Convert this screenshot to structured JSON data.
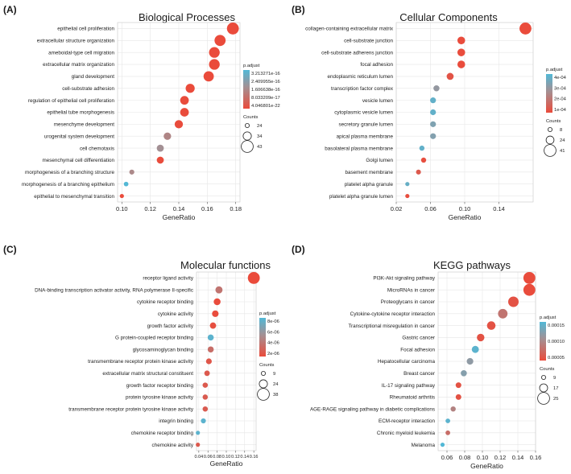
{
  "chart_data": [
    {
      "type": "scatter",
      "letter": "(A)",
      "title": "Biological Processes",
      "xlabel": "GeneRatio",
      "xlim": [
        0.097,
        0.183
      ],
      "xticks": [
        0.1,
        0.12,
        0.14,
        0.16,
        0.18
      ],
      "xtick_labels": [
        "0.10",
        "0.12",
        "0.14",
        "0.16",
        "0.18"
      ],
      "legend_color_title": "p.adjust",
      "legend_color_labels": [
        "3.213271e-16",
        "2.409955e-16",
        "1.606638e-16",
        "8.033209e-17",
        "4.046801e-22"
      ],
      "legend_size_title": "Counts",
      "legend_size_values": [
        24,
        34,
        43
      ],
      "size_range": [
        24,
        43
      ],
      "color_max": 3.213271e-16,
      "terms": [
        "epithelial cell proliferation",
        "extracellular structure organization",
        "ameboidal-type cell migration",
        "extracellular matrix organization",
        "gland development",
        "cell-substrate adhesion",
        "regulation of epithelial cell proliferation",
        "epithelial tube morphogenesis",
        "mesenchyme development",
        "urogenital system development",
        "cell chemotaxis",
        "mesenchymal cell differentiation",
        "morphogenesis of a branching structure",
        "morphogenesis of a branching epithelium",
        "epithelial to mesenchymal transition"
      ],
      "x": [
        0.178,
        0.169,
        0.165,
        0.165,
        0.161,
        0.148,
        0.144,
        0.144,
        0.14,
        0.132,
        0.127,
        0.127,
        0.107,
        0.103,
        0.1
      ],
      "counts": [
        43,
        41,
        40,
        40,
        39,
        36,
        35,
        35,
        34,
        32,
        31,
        31,
        26,
        25,
        24
      ],
      "padj": [
        4e-22,
        2e-20,
        3e-20,
        3e-20,
        5e-20,
        1e-18,
        2e-18,
        2e-18,
        3e-18,
        1.5e-16,
        1.8e-16,
        2e-18,
        1.6e-16,
        3.2e-16,
        4e-22
      ]
    },
    {
      "type": "scatter",
      "letter": "(B)",
      "title": "Cellular Components",
      "xlabel": "GeneRatio",
      "xlim": [
        0.02,
        0.18
      ],
      "xticks": [
        0.02,
        0.06,
        0.1,
        0.14
      ],
      "xtick_labels": [
        "0.02",
        "0.06",
        "0.10",
        "0.14"
      ],
      "legend_color_title": "p.adjust",
      "legend_color_labels": [
        "4e-04",
        "3e-04",
        "2e-04",
        "1e-04"
      ],
      "legend_size_title": "Counts",
      "legend_size_values": [
        8,
        24,
        41
      ],
      "size_range": [
        8,
        41
      ],
      "color_max": 0.00045,
      "terms": [
        "collagen-containing extracellular matrix",
        "cell-substrate junction",
        "cell-substrate adherens junction",
        "focal adhesion",
        "endoplasmic reticulum lumen",
        "transcription factor complex",
        "vesicle lumen",
        "cytoplasmic vesicle lumen",
        "secretory granule lumen",
        "apical plasma membrane",
        "basolateral plasma membrane",
        "Golgi lumen",
        "basement membrane",
        "platelet alpha granule",
        "platelet alpha granule lumen"
      ],
      "x": [
        0.171,
        0.096,
        0.096,
        0.096,
        0.083,
        0.067,
        0.063,
        0.063,
        0.063,
        0.063,
        0.05,
        0.052,
        0.046,
        0.033,
        0.033
      ],
      "counts": [
        41,
        23,
        23,
        23,
        20,
        16,
        15,
        15,
        15,
        15,
        12,
        12,
        11,
        8,
        8
      ],
      "padj": [
        2e-10,
        2e-06,
        2e-06,
        2e-06,
        3e-05,
        0.00029,
        0.00041,
        0.00041,
        0.00034,
        0.00033,
        0.00041,
        1e-05,
        5e-05,
        0.0004,
        1e-05
      ]
    },
    {
      "type": "scatter",
      "letter": "(C)",
      "title": "Molecular functions",
      "xlabel": "GeneRatio",
      "xlim": [
        0.035,
        0.165
      ],
      "xticks": [
        0.04,
        0.06,
        0.08,
        0.1,
        0.12,
        0.14,
        0.16
      ],
      "xtick_labels": [
        "0.04",
        "0.06",
        "0.08",
        "0.10",
        "0.12",
        "0.14",
        "0.16"
      ],
      "legend_color_title": "p.adjust",
      "legend_color_labels": [
        "8e-06",
        "6e-06",
        "4e-06",
        "2e-06"
      ],
      "legend_size_title": "Counts",
      "legend_size_values": [
        9,
        24,
        38
      ],
      "size_range": [
        9,
        38
      ],
      "color_max": 9e-06,
      "terms": [
        "receptor ligand activity",
        "DNA-binding transcription activator activity, RNA polymerase II-specific",
        "cytokine receptor binding",
        "cytokine activity",
        "growth factor activity",
        "G protein-coupled receptor binding",
        "glycosaminoglycan binding",
        "transmembrane receptor protein kinase activity",
        "extracellular matrix structural constituent",
        "growth factor receptor binding",
        "protein tyrosine kinase activity",
        "transmembrane receptor protein tyrosine kinase activity",
        "integrin binding",
        "chemokine receptor binding",
        "chemokine activity"
      ],
      "x": [
        0.16,
        0.084,
        0.08,
        0.076,
        0.071,
        0.066,
        0.066,
        0.062,
        0.058,
        0.054,
        0.054,
        0.054,
        0.05,
        0.038,
        0.038
      ],
      "counts": [
        38,
        20,
        19,
        18,
        17,
        16,
        16,
        15,
        14,
        13,
        13,
        13,
        12,
        9,
        9
      ],
      "padj": [
        5e-14,
        3e-06,
        1e-07,
        1e-07,
        3e-07,
        8.5e-06,
        2.5e-06,
        8e-07,
        1e-06,
        1e-06,
        1.2e-06,
        1.2e-06,
        8.5e-06,
        8.5e-06,
        1e-06
      ]
    },
    {
      "type": "scatter",
      "letter": "(D)",
      "title": "KEGG pathways",
      "xlabel": "GeneRatio",
      "xlim": [
        0.05,
        0.16
      ],
      "xticks": [
        0.06,
        0.08,
        0.1,
        0.12,
        0.14,
        0.16
      ],
      "xtick_labels": [
        "0.06",
        "0.08",
        "0.10",
        "0.12",
        "0.14",
        "0.16"
      ],
      "legend_color_title": "p.adjust",
      "legend_color_labels": [
        "0.00015",
        "0.00010",
        "0.00005"
      ],
      "legend_size_title": "Counts",
      "legend_size_values": [
        9,
        17,
        25
      ],
      "size_range": [
        9,
        25
      ],
      "color_max": 0.00018,
      "terms": [
        "PI3K-Akt signaling pathway",
        "MicroRNAs in cancer",
        "Proteoglycans in cancer",
        "Cytokine-cytokine receptor interaction",
        "Transcriptional misregulation in cancer",
        "Gastric cancer",
        "Focal adhesion",
        "Hepatocellular carcinoma",
        "Breast cancer",
        "IL-17 signaling pathway",
        "Rheumatoid arthritis",
        "AGE-RAGE signaling pathway in diabetic complications",
        "ECM-receptor interaction",
        "Chronic myeloid leukemia",
        "Melanoma"
      ],
      "x": [
        0.153,
        0.153,
        0.135,
        0.123,
        0.11,
        0.098,
        0.092,
        0.086,
        0.079,
        0.073,
        0.073,
        0.067,
        0.061,
        0.061,
        0.055
      ],
      "counts": [
        25,
        25,
        22,
        20,
        18,
        16,
        15,
        14,
        13,
        12,
        12,
        11,
        10,
        10,
        9
      ],
      "padj": [
        1e-06,
        1e-06,
        1e-05,
        6e-05,
        1e-05,
        1e-05,
        0.00017,
        0.00012,
        0.00013,
        1e-05,
        1e-05,
        8e-05,
        0.00017,
        5e-05,
        0.00018
      ]
    }
  ]
}
